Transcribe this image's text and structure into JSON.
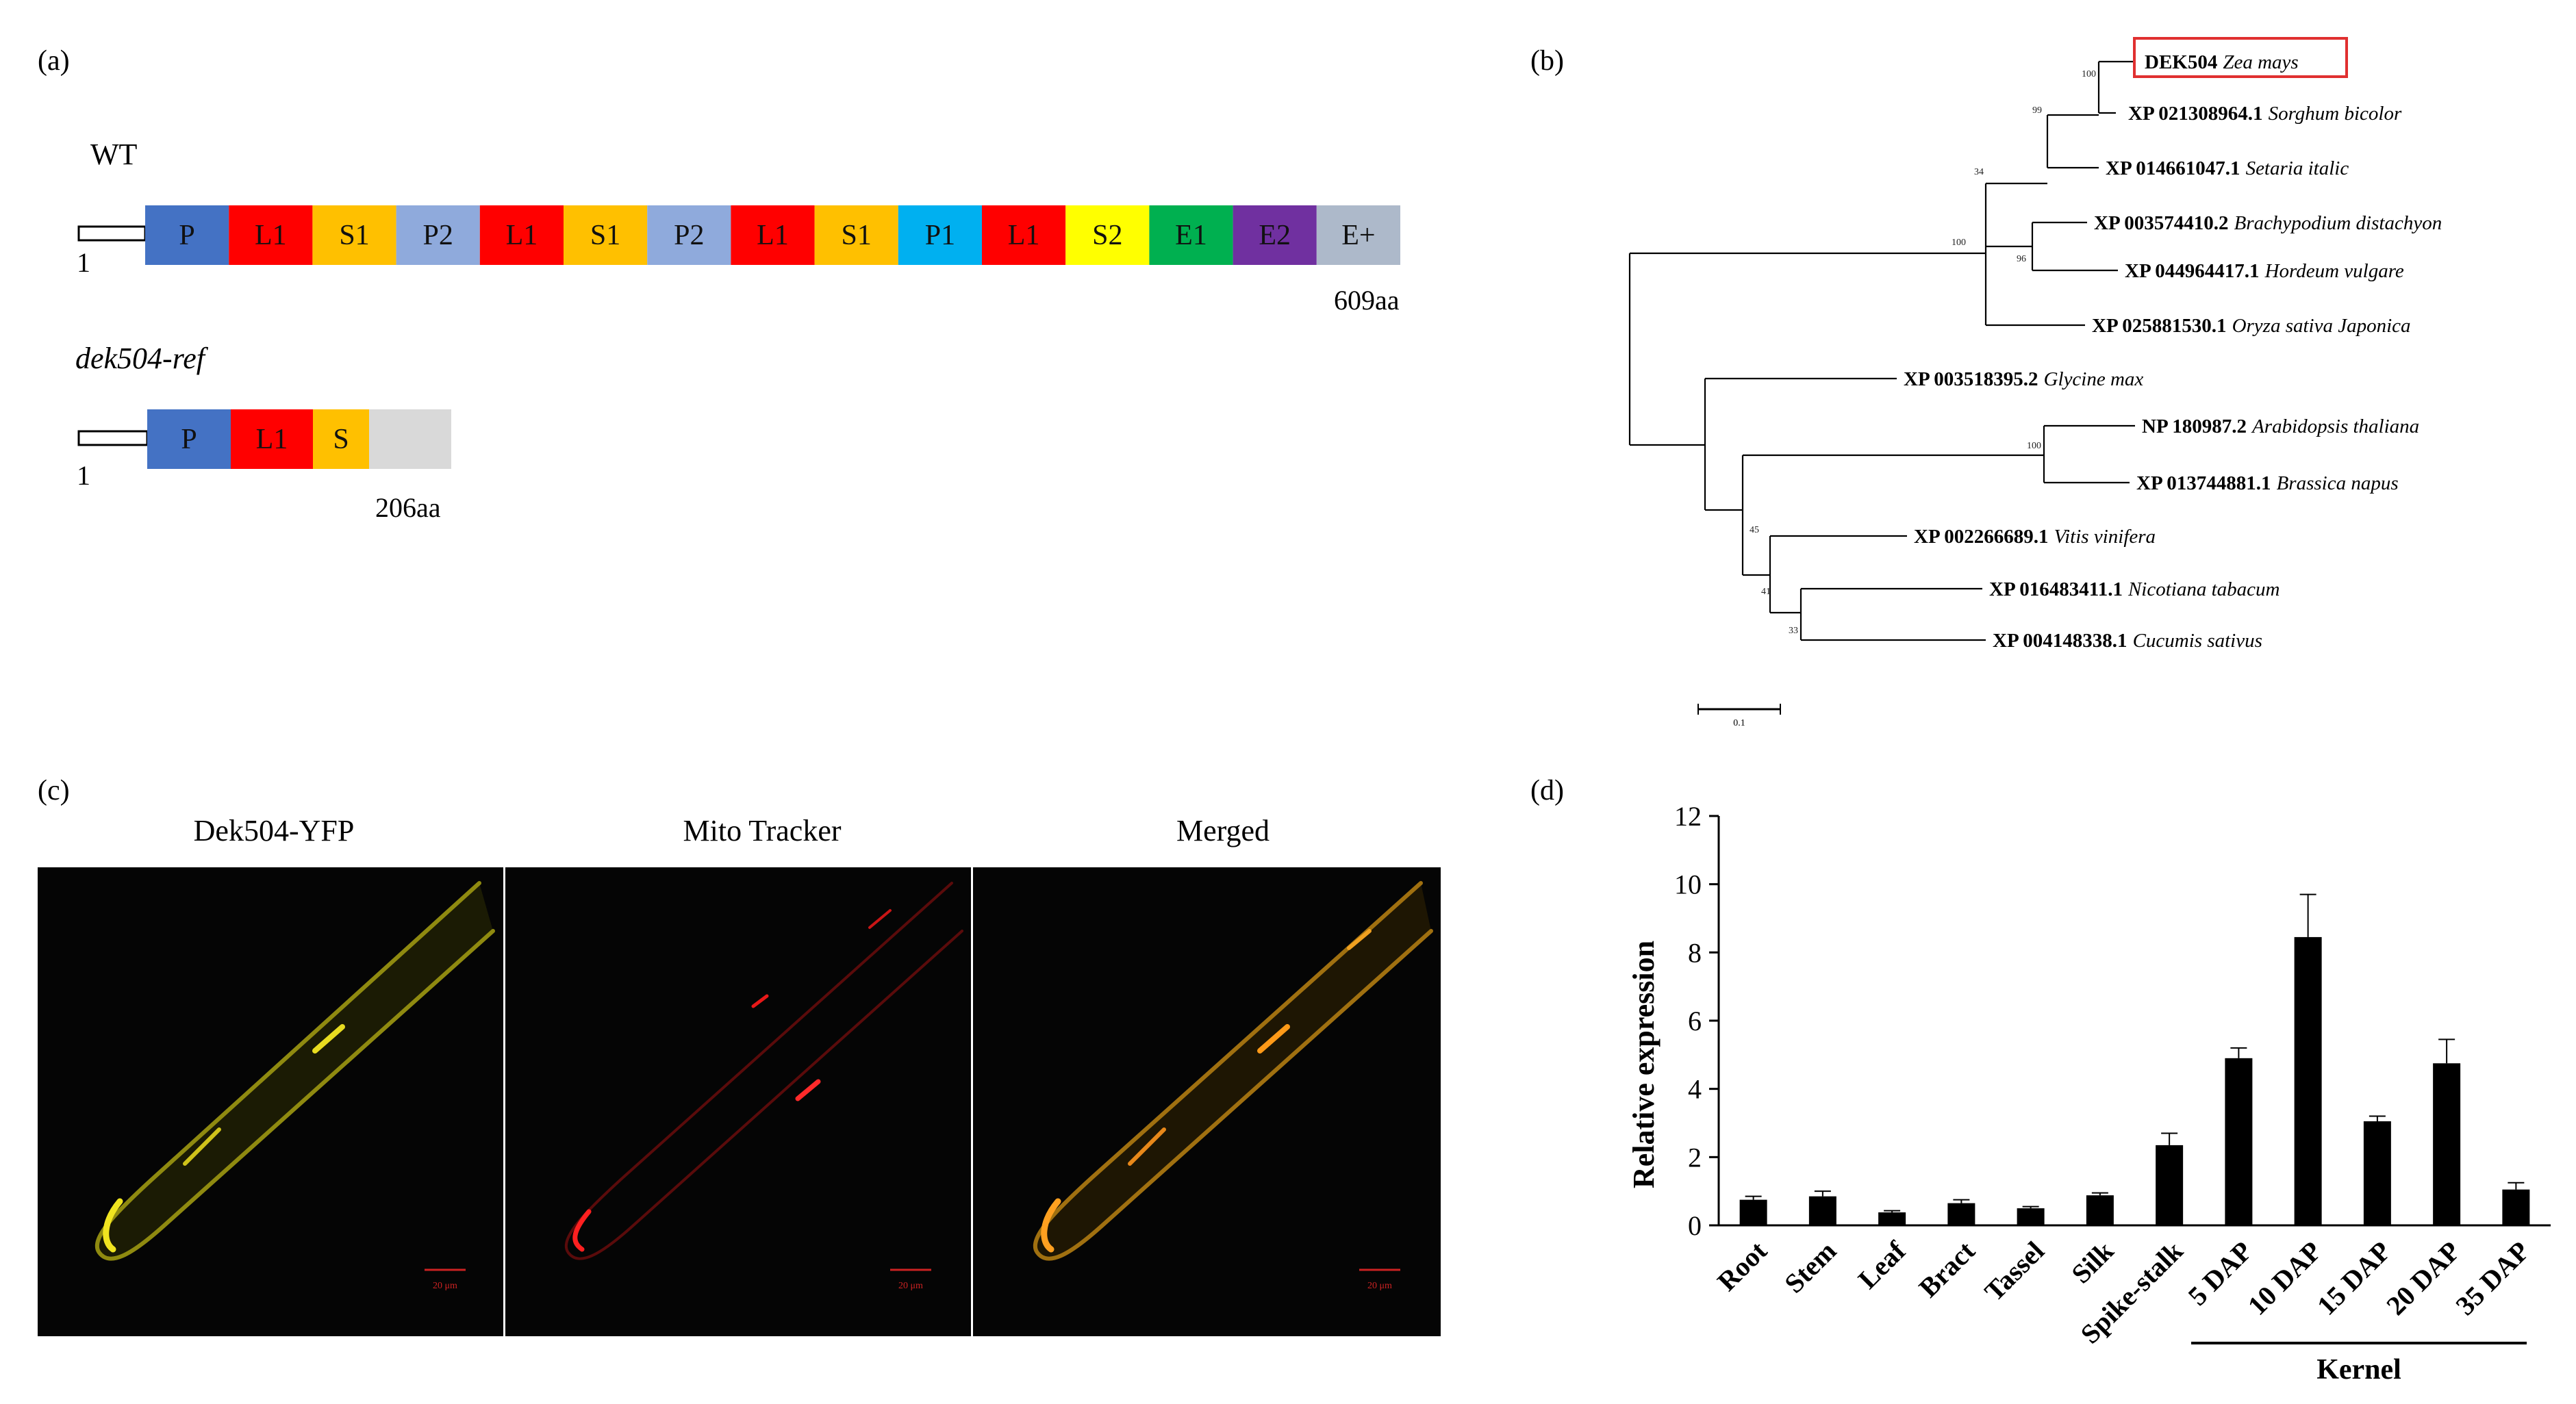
{
  "panel_labels": {
    "a": "(a)",
    "b": "(b)",
    "c": "(c)",
    "d": "(d)"
  },
  "panel_a": {
    "wt": {
      "label": "WT",
      "start": "1",
      "end": "609aa",
      "domains": [
        {
          "label": "P",
          "color": "#4472c4"
        },
        {
          "label": "L1",
          "color": "#ff0000"
        },
        {
          "label": "S1",
          "color": "#ffc000"
        },
        {
          "label": "P2",
          "color": "#8faadc"
        },
        {
          "label": "L1",
          "color": "#ff0000"
        },
        {
          "label": "S1",
          "color": "#ffc000"
        },
        {
          "label": "P2",
          "color": "#8faadc"
        },
        {
          "label": "L1",
          "color": "#ff0000"
        },
        {
          "label": "S1",
          "color": "#ffc000"
        },
        {
          "label": "P1",
          "color": "#00b0f0"
        },
        {
          "label": "L1",
          "color": "#ff0000"
        },
        {
          "label": "S2",
          "color": "#ffff00"
        },
        {
          "label": "E1",
          "color": "#00b050"
        },
        {
          "label": "E2",
          "color": "#7030a0"
        },
        {
          "label": "E+",
          "color": "#adb9ca"
        }
      ]
    },
    "mutant": {
      "label": "dek504-ref",
      "start": "1",
      "end": "206aa",
      "domains": [
        {
          "label": "P",
          "color": "#4472c4"
        },
        {
          "label": "L1",
          "color": "#ff0000"
        },
        {
          "label": "S",
          "color": "#ffc000"
        },
        {
          "label": "",
          "color": "#d9d9d9"
        }
      ]
    }
  },
  "panel_b": {
    "taxa": [
      {
        "acc": "DEK504",
        "species": "Zea mays",
        "highlight": true
      },
      {
        "acc": "XP 021308964.1",
        "species": "Sorghum bicolor"
      },
      {
        "acc": "XP 014661047.1",
        "species": "Setaria italic"
      },
      {
        "acc": "XP 003574410.2",
        "species": "Brachypodium distachyon"
      },
      {
        "acc": "XP 044964417.1",
        "species": "Hordeum vulgare"
      },
      {
        "acc": "XP 025881530.1",
        "species": "Oryza sativa Japonica"
      },
      {
        "acc": "XP 003518395.2",
        "species": "Glycine max"
      },
      {
        "acc": "NP 180987.2",
        "species": "Arabidopsis thaliana"
      },
      {
        "acc": "XP 013744881.1",
        "species": "Brassica  napus"
      },
      {
        "acc": "XP 002266689.1",
        "species": "Vitis vinifera"
      },
      {
        "acc": "XP 016483411.1",
        "species": "Nicotiana tabacum"
      },
      {
        "acc": "XP 004148338.1",
        "species": "Cucumis sativus"
      }
    ],
    "bootstrap": [
      "100",
      "99",
      "34",
      "100",
      "96",
      "100",
      "45",
      "41",
      "33"
    ],
    "scale_label": "0.1",
    "highlight_color": "#e03030"
  },
  "panel_c": {
    "titles": [
      "Dek504-YFP",
      "Mito Tracker",
      "Merged"
    ],
    "scale_bar_text": "20 μm",
    "colors": [
      "#d8cc10",
      "#e81818",
      "#f09a18"
    ]
  },
  "chart_data": {
    "type": "bar",
    "categories": [
      "Root",
      "Stem",
      "Leaf",
      "Bract",
      "Tassel",
      "Silk",
      "Spike-stalk",
      "5 DAP",
      "10 DAP",
      "15 DAP",
      "20 DAP",
      "35 DAP"
    ],
    "values": [
      0.75,
      0.85,
      0.38,
      0.65,
      0.5,
      0.88,
      2.35,
      4.9,
      8.45,
      3.05,
      4.75,
      1.05
    ],
    "errors": [
      0.1,
      0.15,
      0.05,
      0.1,
      0.05,
      0.07,
      0.35,
      0.3,
      1.25,
      0.15,
      0.7,
      0.2
    ],
    "title": "",
    "xlabel": "",
    "ylabel": "Relative expression",
    "ylim": [
      0,
      12
    ],
    "yticks": [
      0,
      2,
      4,
      6,
      8,
      10,
      12
    ],
    "group_label": "Kernel",
    "bar_color": "#000000"
  }
}
